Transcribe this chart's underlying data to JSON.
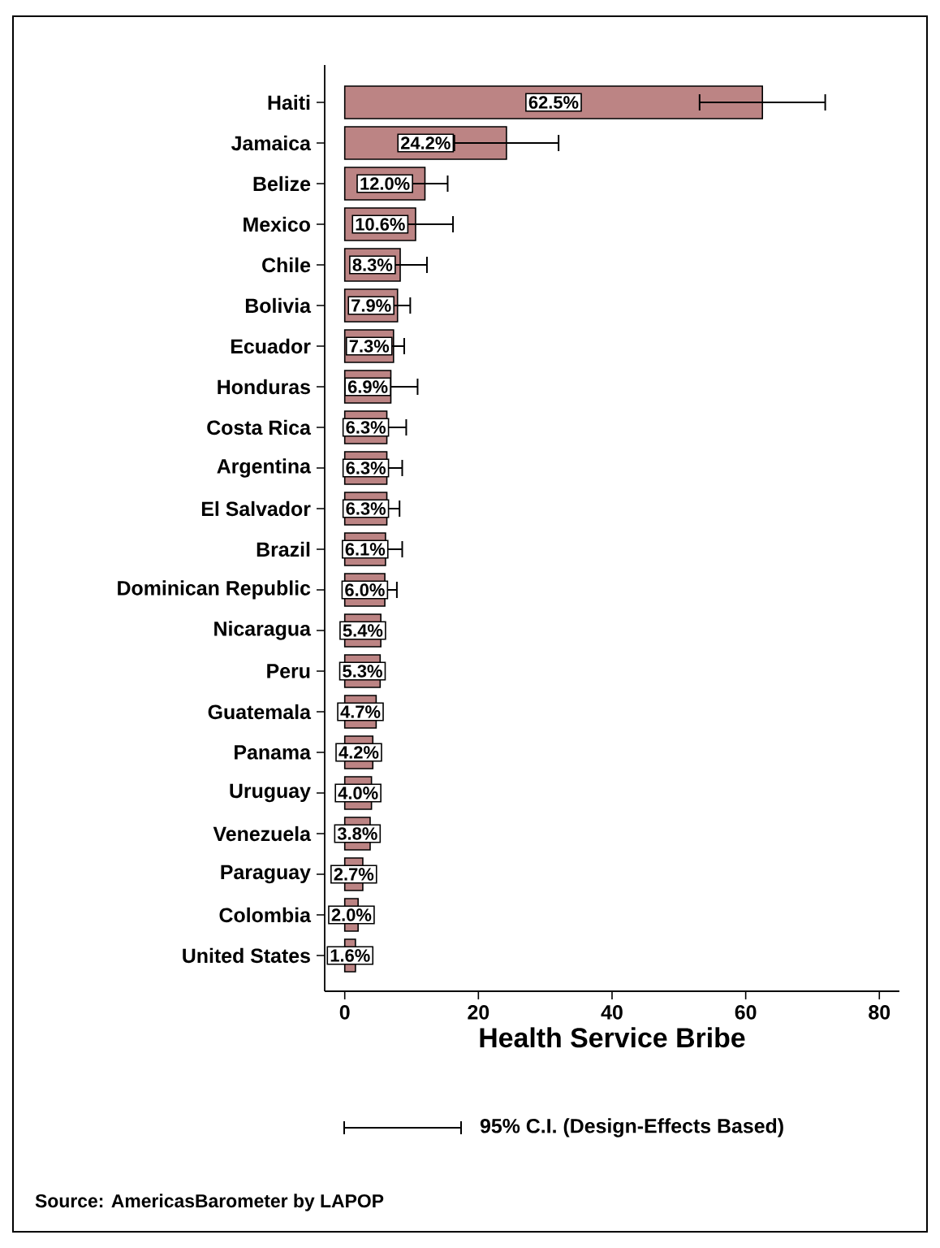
{
  "chart_data": {
    "type": "bar",
    "orientation": "horizontal",
    "xlabel": "Health Service Bribe",
    "categories": [
      "Haiti",
      "Jamaica",
      "Belize",
      "Mexico",
      "Chile",
      "Bolivia",
      "Ecuador",
      "Honduras",
      "Costa Rica",
      "Argentina",
      "El Salvador",
      "Brazil",
      "Dominican Republic",
      "Nicaragua",
      "Peru",
      "Guatemala",
      "Panama",
      "Uruguay",
      "Venezuela",
      "Paraguay",
      "Colombia",
      "United States"
    ],
    "values": [
      62.5,
      24.2,
      12.0,
      10.6,
      8.3,
      7.9,
      7.3,
      6.9,
      6.3,
      6.3,
      6.3,
      6.1,
      6.0,
      5.4,
      5.3,
      4.7,
      4.2,
      4.0,
      3.8,
      2.7,
      2.0,
      1.6
    ],
    "value_labels": [
      "62.5%",
      "24.2%",
      "12.0%",
      "10.6%",
      "8.3%",
      "7.9%",
      "7.3%",
      "6.9%",
      "6.3%",
      "6.3%",
      "6.3%",
      "6.1%",
      "6.0%",
      "5.4%",
      "5.3%",
      "4.7%",
      "4.2%",
      "4.0%",
      "3.8%",
      "2.7%",
      "2.0%",
      "1.6%"
    ],
    "errors": [
      9.4,
      7.8,
      3.4,
      5.6,
      4.0,
      1.9,
      1.6,
      4.0,
      2.9,
      2.3,
      1.9,
      2.5,
      1.8,
      null,
      null,
      null,
      null,
      null,
      null,
      null,
      null,
      null
    ],
    "color": "#bc8484",
    "xlim": [
      -3,
      83
    ],
    "xticks": [
      0,
      20,
      40,
      60,
      80
    ],
    "grid": false,
    "annotations": [
      "95% C.I. (Design-Effects Based)",
      "Source: AmericasBarometer by LAPOP"
    ]
  }
}
